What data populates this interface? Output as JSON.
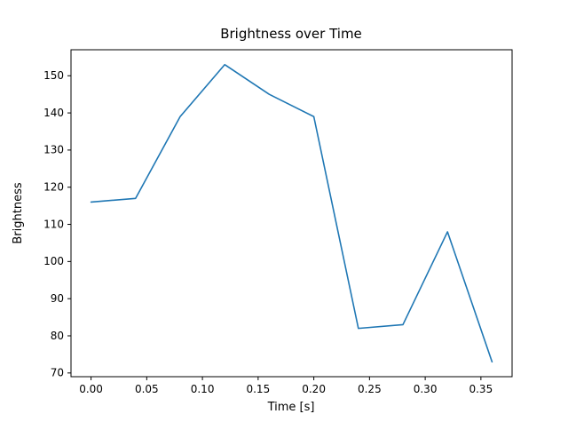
{
  "chart_data": {
    "type": "line",
    "title": "Brightness over Time",
    "xlabel": "Time [s]",
    "ylabel": "Brightness",
    "x": [
      0.0,
      0.04,
      0.08,
      0.12,
      0.16,
      0.2,
      0.24,
      0.28,
      0.32,
      0.36
    ],
    "values": [
      116,
      117,
      139,
      153,
      145,
      139,
      82,
      83,
      108,
      73
    ],
    "xlim": [
      -0.018,
      0.378
    ],
    "ylim": [
      69,
      157
    ],
    "xticks": [
      0.0,
      0.05,
      0.1,
      0.15,
      0.2,
      0.25,
      0.3,
      0.35
    ],
    "xtick_labels": [
      "0.00",
      "0.05",
      "0.10",
      "0.15",
      "0.20",
      "0.25",
      "0.30",
      "0.35"
    ],
    "yticks": [
      70,
      80,
      90,
      100,
      110,
      120,
      130,
      140,
      150
    ],
    "ytick_labels": [
      "70",
      "80",
      "90",
      "100",
      "110",
      "120",
      "130",
      "140",
      "150"
    ],
    "line_color": "#1f77b4",
    "spine_color": "#000000",
    "grid": false,
    "legend_position": "none"
  }
}
